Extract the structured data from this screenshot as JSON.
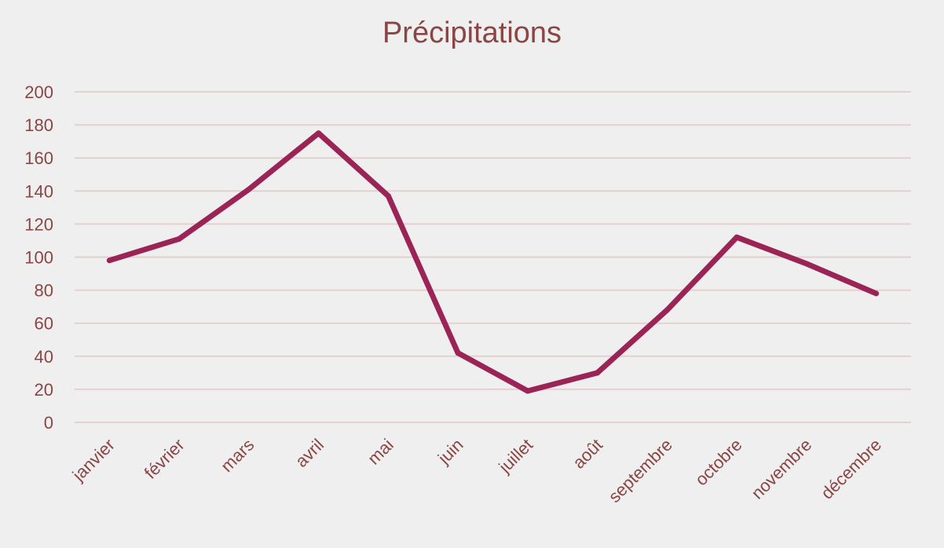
{
  "chart_data": {
    "type": "line",
    "title": "Précipitations",
    "xlabel": "",
    "ylabel": "",
    "categories": [
      "janvier",
      "février",
      "mars",
      "avril",
      "mai",
      "juin",
      "juillet",
      "août",
      "septembre",
      "octobre",
      "novembre",
      "décembre"
    ],
    "series": [
      {
        "values": [
          98,
          111,
          141,
          175,
          137,
          42,
          19,
          30,
          68,
          112,
          96,
          78
        ]
      }
    ],
    "ylim": [
      0,
      200
    ],
    "yticks": [
      0,
      20,
      40,
      60,
      80,
      100,
      120,
      140,
      160,
      180,
      200
    ],
    "grid": true,
    "legend": "none",
    "colors": {
      "line": "#9b2456",
      "text": "#8a4545",
      "grid": "#e6cfcf",
      "background": "#efefef"
    }
  }
}
